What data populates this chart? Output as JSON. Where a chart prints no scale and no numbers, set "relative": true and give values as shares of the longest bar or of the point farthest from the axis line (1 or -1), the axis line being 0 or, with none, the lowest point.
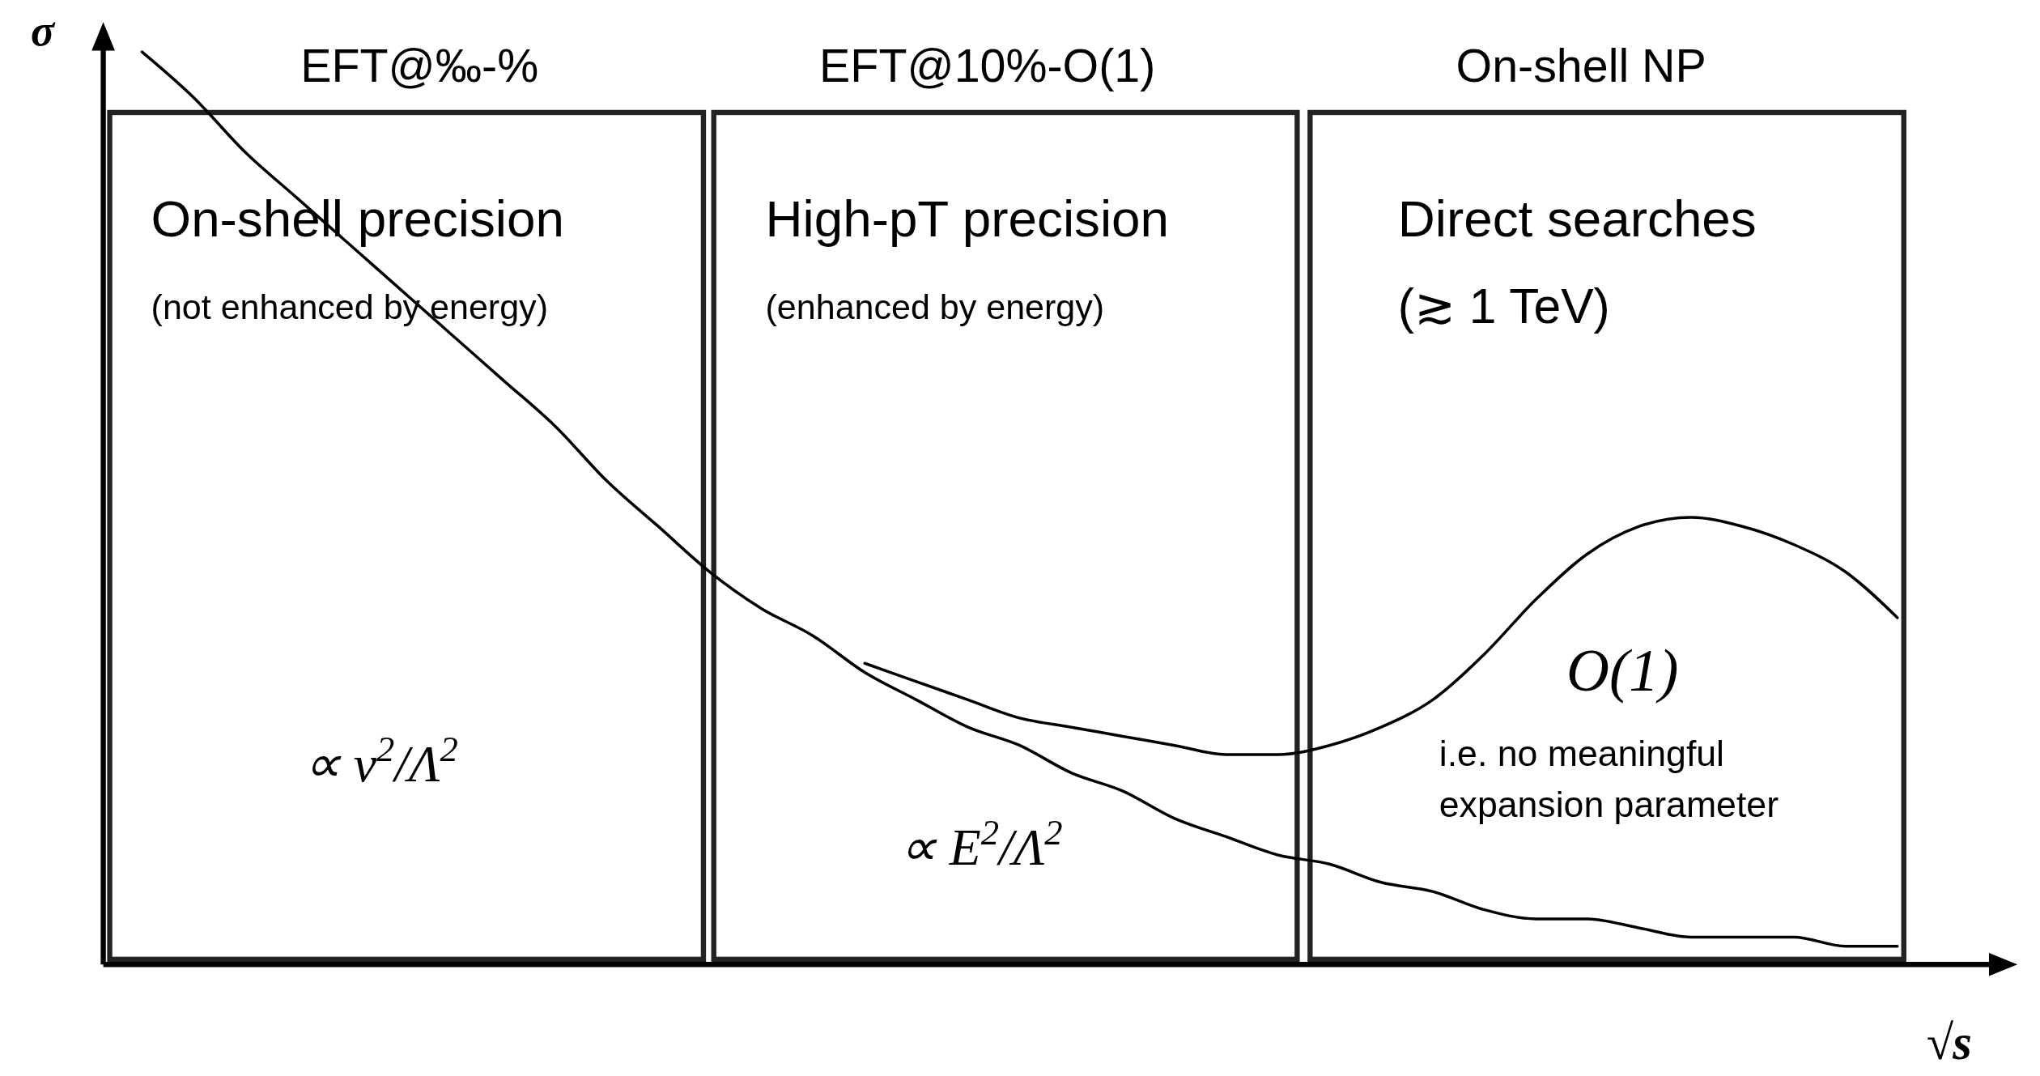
{
  "chart_data": {
    "type": "line",
    "relative": true,
    "xlabel": "√s",
    "ylabel": "σ",
    "categories": [
      null,
      null,
      null,
      null,
      null,
      null,
      null,
      null,
      null,
      null,
      null,
      null,
      null,
      null,
      null,
      null,
      null,
      null,
      null,
      null,
      null,
      null,
      null,
      null,
      null,
      null,
      null,
      null,
      null,
      null,
      null,
      null,
      null,
      null,
      null
    ],
    "series": [
      {
        "color": "#000000",
        "values": [
          1.0,
          0.95,
          0.89,
          0.84,
          0.79,
          0.74,
          0.69,
          0.64,
          0.59,
          0.53,
          0.48,
          0.43,
          0.39,
          0.36,
          0.32,
          0.29,
          0.26,
          0.24,
          0.21,
          0.19,
          0.16,
          0.14,
          0.12,
          0.11,
          0.09,
          0.08,
          0.06,
          0.05,
          0.05,
          0.04,
          0.03,
          0.03,
          0.03,
          0.02,
          0.02
        ]
      },
      {
        "color": "#000000",
        "values": [
          null,
          null,
          null,
          null,
          null,
          null,
          null,
          null,
          null,
          null,
          null,
          null,
          null,
          null,
          0.33,
          0.31,
          0.29,
          0.27,
          0.26,
          0.25,
          0.24,
          0.23,
          0.23,
          0.24,
          0.26,
          0.29,
          0.34,
          0.4,
          0.45,
          0.48,
          0.49,
          0.48,
          0.46,
          0.43,
          0.38
        ]
      }
    ],
    "annotations": [
      "EFT@‰-%",
      "On-shell precision",
      "(not enhanced by energy)",
      "∝ v$^{2}$/Λ$^{2}$",
      "EFT@10%-O(1)",
      "High-pT precision",
      "(enhanced by energy)",
      "∝ E$^{2}$/Λ$^{2}$",
      "On-shell NP",
      "Direct searches",
      "(≳ 1 TeV)",
      "O(1)",
      "i.e. no meaningful",
      "expansion parameter"
    ]
  }
}
